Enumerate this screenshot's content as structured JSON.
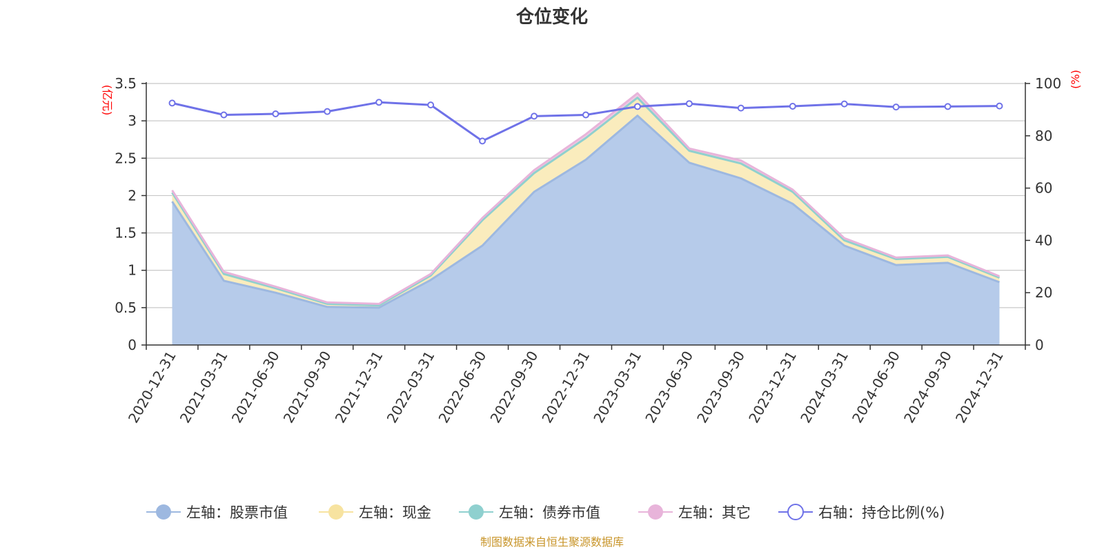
{
  "chart_data": {
    "type": "area",
    "title": "仓位变化",
    "left_unit": "(亿元)",
    "right_unit": "(%)",
    "categories": [
      "2020-12-31",
      "2021-03-31",
      "2021-06-30",
      "2021-09-30",
      "2021-12-31",
      "2022-03-31",
      "2022-06-30",
      "2022-09-30",
      "2022-12-31",
      "2023-03-31",
      "2023-06-30",
      "2023-09-30",
      "2023-12-31",
      "2024-03-31",
      "2024-06-30",
      "2024-09-30",
      "2024-12-31"
    ],
    "left_axis": {
      "min": 0,
      "max": 3.5,
      "ticks": [
        "0",
        "0.5",
        "1",
        "1.5",
        "2",
        "2.5",
        "3",
        "3.5"
      ]
    },
    "right_axis": {
      "min": 0,
      "max": 100,
      "ticks": [
        "0",
        "20",
        "40",
        "60",
        "80",
        "100"
      ]
    },
    "stack_series": [
      {
        "name": "左轴：股票市值",
        "color": "#9db8e0",
        "fill": "#b6cbea",
        "values": [
          1.92,
          0.86,
          0.7,
          0.51,
          0.5,
          0.87,
          1.33,
          2.05,
          2.48,
          3.07,
          2.44,
          2.23,
          1.89,
          1.33,
          1.07,
          1.1,
          0.84
        ]
      },
      {
        "name": "左轴：现金",
        "color": "#f7e3a0",
        "fill": "#faecbd",
        "values": [
          0.12,
          0.09,
          0.06,
          0.04,
          0.03,
          0.06,
          0.34,
          0.25,
          0.29,
          0.24,
          0.16,
          0.2,
          0.16,
          0.07,
          0.08,
          0.08,
          0.06
        ]
      },
      {
        "name": "左轴：债券市值",
        "color": "#8fd0cf",
        "fill": "#b4e0df",
        "values": [
          0,
          0,
          0,
          0,
          0,
          0,
          0,
          0,
          0,
          0,
          0,
          0,
          0,
          0,
          0,
          0,
          0
        ]
      },
      {
        "name": "左轴：其它",
        "color": "#e8b4da",
        "fill": "#efc9e5",
        "values": [
          0.03,
          0.03,
          0.02,
          0.02,
          0.02,
          0.02,
          0.03,
          0.04,
          0.05,
          0.06,
          0.03,
          0.04,
          0.03,
          0.03,
          0.02,
          0.02,
          0.02
        ]
      }
    ],
    "line_series": {
      "name": "右轴：持仓比例(%)",
      "color": "#6f72e8",
      "values": [
        92.5,
        88.0,
        88.4,
        89.3,
        92.8,
        91.8,
        78.0,
        87.5,
        88.0,
        91.2,
        92.3,
        90.6,
        91.3,
        92.2,
        91.0,
        91.2,
        91.4
      ]
    },
    "legend_position": "bottom",
    "grid": true
  },
  "legend": [
    {
      "label": "左轴：股票市值",
      "color": "#9db8e0",
      "icon": "filled-circle-icon"
    },
    {
      "label": "左轴：现金",
      "color": "#f7e3a0",
      "icon": "filled-circle-icon"
    },
    {
      "label": "左轴：债券市值",
      "color": "#8fd0cf",
      "icon": "filled-circle-icon"
    },
    {
      "label": "左轴：其它",
      "color": "#e8b4da",
      "icon": "filled-circle-icon"
    },
    {
      "label": "右轴：持仓比例(%)",
      "color": "#6f72e8",
      "icon": "hollow-circle-icon"
    }
  ],
  "source": "制图数据来自恒生聚源数据库"
}
